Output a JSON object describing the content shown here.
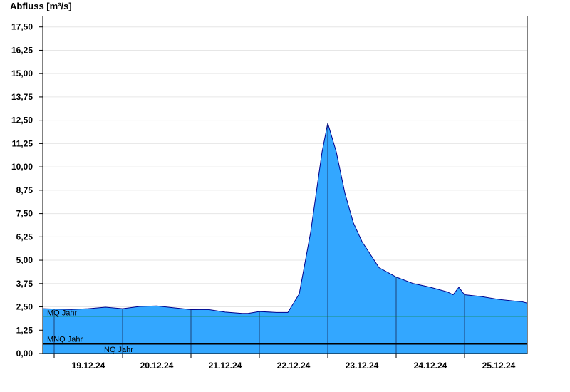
{
  "chart_data": {
    "type": "area",
    "title": "Abfluss [m³/s]",
    "ylim": [
      0,
      18.1
    ],
    "yticks": [
      {
        "value": 0,
        "label": "0,00"
      },
      {
        "value": 1.25,
        "label": "1,25"
      },
      {
        "value": 2.5,
        "label": "2,50"
      },
      {
        "value": 3.75,
        "label": "3,75"
      },
      {
        "value": 5,
        "label": "5,00"
      },
      {
        "value": 6.25,
        "label": "6,25"
      },
      {
        "value": 7.5,
        "label": "7,50"
      },
      {
        "value": 8.75,
        "label": "8,75"
      },
      {
        "value": 10,
        "label": "10,00"
      },
      {
        "value": 11.25,
        "label": "11,25"
      },
      {
        "value": 12.5,
        "label": "12,50"
      },
      {
        "value": 13.75,
        "label": "13,75"
      },
      {
        "value": 15,
        "label": "15,00"
      },
      {
        "value": 16.25,
        "label": "16,25"
      },
      {
        "value": 17.5,
        "label": "17,50"
      }
    ],
    "xlim": [
      "2024-12-18T20:00",
      "2024-12-25T22:00"
    ],
    "xticks": [
      {
        "t": "2024-12-19T12:00",
        "label": "19.12.24"
      },
      {
        "t": "2024-12-20T12:00",
        "label": "20.12.24"
      },
      {
        "t": "2024-12-21T12:00",
        "label": "21.12.24"
      },
      {
        "t": "2024-12-22T12:00",
        "label": "22.12.24"
      },
      {
        "t": "2024-12-23T12:00",
        "label": "23.12.24"
      },
      {
        "t": "2024-12-24T12:00",
        "label": "24.12.24"
      },
      {
        "t": "2024-12-25T12:00",
        "label": "25.12.24"
      }
    ],
    "day_boundaries": [
      "2024-12-19T00:00",
      "2024-12-20T00:00",
      "2024-12-21T00:00",
      "2024-12-22T00:00",
      "2024-12-23T00:00",
      "2024-12-24T00:00",
      "2024-12-25T00:00",
      "2024-12-26T00:00"
    ],
    "reference_lines": [
      {
        "name": "MQ Jahr",
        "value": 2.0,
        "color": "#008000"
      },
      {
        "name": "MNQ Jahr",
        "value": 0.55,
        "color": "#000000"
      },
      {
        "name": "NQ Jahr",
        "value": 0.5,
        "color": "#000000"
      }
    ],
    "grid": true,
    "fill_color": "#33a7ff",
    "line_color": "#00008b",
    "series": [
      {
        "x": [
          "2024-12-18T20:00",
          "2024-12-19T00:00",
          "2024-12-19T06:00",
          "2024-12-19T12:00",
          "2024-12-19T18:00",
          "2024-12-20T00:00",
          "2024-12-20T06:00",
          "2024-12-20T12:00",
          "2024-12-20T18:00",
          "2024-12-21T00:00",
          "2024-12-21T06:00",
          "2024-12-21T12:00",
          "2024-12-21T18:00",
          "2024-12-21T20:00",
          "2024-12-22T00:00",
          "2024-12-22T06:00",
          "2024-12-22T10:00",
          "2024-12-22T14:00",
          "2024-12-22T18:00",
          "2024-12-22T22:00",
          "2024-12-23T00:00",
          "2024-12-23T03:00",
          "2024-12-23T06:00",
          "2024-12-23T09:00",
          "2024-12-23T12:00",
          "2024-12-23T18:00",
          "2024-12-24T00:00",
          "2024-12-24T06:00",
          "2024-12-24T12:00",
          "2024-12-24T18:00",
          "2024-12-24T20:00",
          "2024-12-24T22:00",
          "2024-12-25T00:00",
          "2024-12-25T06:00",
          "2024-12-25T12:00",
          "2024-12-25T18:00",
          "2024-12-25T20:00",
          "2024-12-25T22:00"
        ],
        "y": [
          2.4,
          2.38,
          2.36,
          2.4,
          2.48,
          2.4,
          2.52,
          2.55,
          2.45,
          2.35,
          2.36,
          2.22,
          2.15,
          2.15,
          2.25,
          2.2,
          2.2,
          3.2,
          6.5,
          10.8,
          12.35,
          10.8,
          8.6,
          7.0,
          6.0,
          4.6,
          4.1,
          3.75,
          3.55,
          3.3,
          3.15,
          3.55,
          3.15,
          3.05,
          2.9,
          2.8,
          2.78,
          2.7
        ]
      }
    ]
  }
}
